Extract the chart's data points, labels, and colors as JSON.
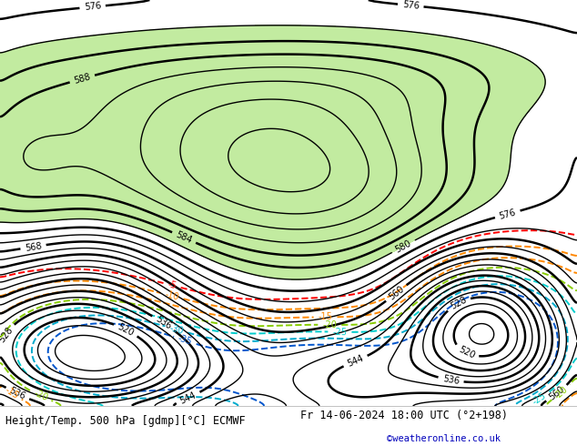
{
  "title_left": "Height/Temp. 500 hPa [gdmp][°C] ECMWF",
  "title_right": "Fr 14-06-2024 18:00 UTC (°2+198)",
  "credit": "©weatheronline.co.uk",
  "ocean_color": "#d4dce8",
  "land_color": "#c8c8c8",
  "green_shade_color": "#b8e890",
  "fig_width": 6.34,
  "fig_height": 4.9,
  "dpi": 100,
  "map_extent": [
    95,
    185,
    -62,
    8
  ],
  "z500_contour_color": "black",
  "z500_label_levels": [
    520,
    528,
    536,
    544,
    560,
    568,
    576,
    580,
    584,
    588
  ],
  "bottom_bar_color": "#f0f0f0",
  "title_fontsize": 8.5,
  "credit_color": "#0000bb"
}
